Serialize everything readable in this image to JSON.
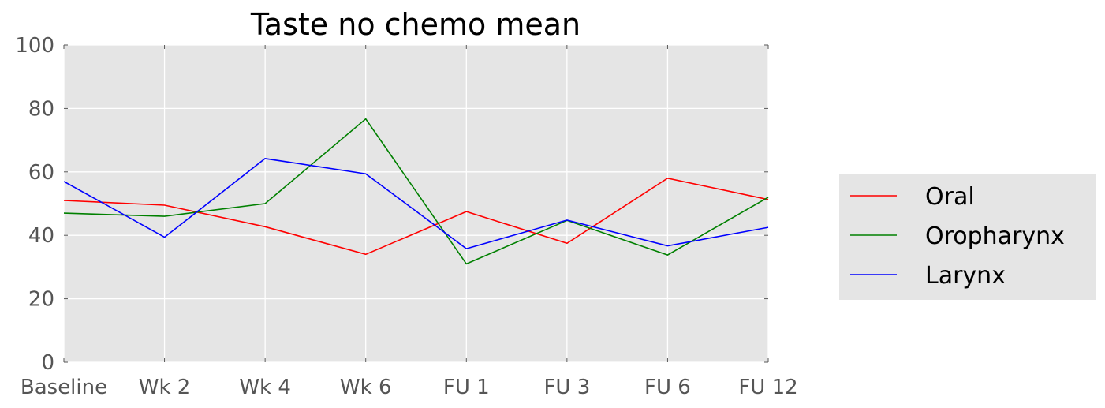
{
  "chart_data": {
    "type": "line",
    "title": "Taste no chemo  mean",
    "xlabel": "",
    "ylabel": "",
    "categories": [
      "Baseline",
      "Wk 2",
      "Wk 4",
      "Wk 6",
      "FU 1",
      "FU 3",
      "FU 6",
      "FU 12"
    ],
    "ylim": [
      0,
      100
    ],
    "yticks": [
      0,
      20,
      40,
      60,
      80,
      100
    ],
    "grid": true,
    "legend_position": "center-right outside plot",
    "series": [
      {
        "name": "Oral",
        "color": "#ff0000",
        "values": [
          51,
          49.5,
          42.7,
          34,
          47.5,
          37.5,
          58,
          51.3
        ]
      },
      {
        "name": "Oropharynx",
        "color": "#008000",
        "values": [
          47,
          46,
          50,
          76.7,
          31,
          44.7,
          33.8,
          52
        ]
      },
      {
        "name": "Larynx",
        "color": "#0000ff",
        "values": [
          57,
          39.4,
          64.2,
          59.4,
          35.8,
          44.8,
          36.7,
          42.5
        ]
      }
    ]
  }
}
